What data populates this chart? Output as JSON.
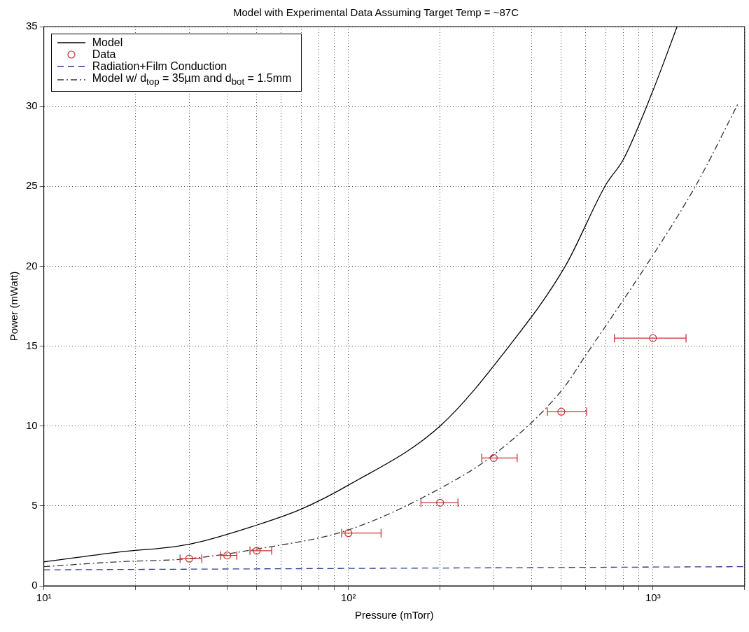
{
  "chart_data": {
    "type": "line",
    "title": "Model with Experimental Data Assuming Target Temp = ~87C",
    "xlabel": "Pressure (mTorr)",
    "ylabel": "Power (mWatt)",
    "log": "x",
    "grid": true,
    "legend": "top left",
    "xlim": [
      10,
      2000
    ],
    "ylim": [
      0,
      35
    ],
    "xticks": [
      {
        "value": 10,
        "label": "10¹"
      },
      {
        "value": 20,
        "label": null
      },
      {
        "value": 30,
        "label": null
      },
      {
        "value": 40,
        "label": null
      },
      {
        "value": 50,
        "label": null
      },
      {
        "value": 60,
        "label": null
      },
      {
        "value": 70,
        "label": null
      },
      {
        "value": 80,
        "label": null
      },
      {
        "value": 90,
        "label": null
      },
      {
        "value": 100,
        "label": "10²"
      },
      {
        "value": 200,
        "label": null
      },
      {
        "value": 300,
        "label": null
      },
      {
        "value": 400,
        "label": null
      },
      {
        "value": 500,
        "label": null
      },
      {
        "value": 600,
        "label": null
      },
      {
        "value": 700,
        "label": null
      },
      {
        "value": 800,
        "label": null
      },
      {
        "value": 900,
        "label": null
      },
      {
        "value": 1000,
        "label": "10³"
      },
      {
        "value": 2000,
        "label": null
      }
    ],
    "yticks": [
      0,
      5,
      10,
      15,
      20,
      25,
      30,
      35
    ],
    "series": [
      {
        "name": "Model",
        "type": "line",
        "color": "#000000",
        "line_style": "solid",
        "marker": "none",
        "x": [
          10,
          17.4,
          30,
          50,
          70,
          100,
          200,
          337,
          515,
          700,
          800,
          1000,
          1200
        ],
        "values": [
          1.5,
          2.1,
          2.6,
          3.8,
          4.8,
          6.3,
          10.0,
          15.0,
          20.0,
          25.1,
          26.7,
          31.0,
          35.0
        ]
      },
      {
        "name": "Data",
        "type": "scatter",
        "color": "#c83232",
        "marker": "circle",
        "x": [
          30,
          40,
          50,
          100,
          200,
          300,
          500,
          1000
        ],
        "values": [
          1.7,
          1.9,
          2.2,
          3.3,
          5.2,
          8.0,
          10.9,
          15.5
        ],
        "xerrors": [
          [
            28,
            33
          ],
          [
            38,
            43
          ],
          [
            47.5,
            56
          ],
          [
            95,
            128
          ],
          [
            173,
            229
          ],
          [
            274,
            358
          ],
          [
            450,
            606
          ],
          [
            747,
            1284
          ]
        ]
      },
      {
        "name": "Radiation+Film Conduction",
        "type": "line",
        "color": "#2b3a8f",
        "line_style": "dashed",
        "marker": "none",
        "x": [
          10,
          2000
        ],
        "values": [
          1.0,
          1.2
        ]
      },
      {
        "name": "Model w/ d$_{top}$ = 35µm and d$_{bot}$ = 1.5mm",
        "type": "line",
        "color": "#333333",
        "line_style": "dashdot",
        "marker": "none",
        "x": [
          10,
          17.4,
          30,
          50,
          100,
          200,
          300,
          500,
          605,
          1000,
          1387,
          1905
        ],
        "values": [
          1.2,
          1.5,
          1.7,
          2.3,
          3.5,
          6.1,
          8.2,
          12.2,
          14.5,
          20.7,
          25.1,
          30.2
        ]
      }
    ]
  }
}
